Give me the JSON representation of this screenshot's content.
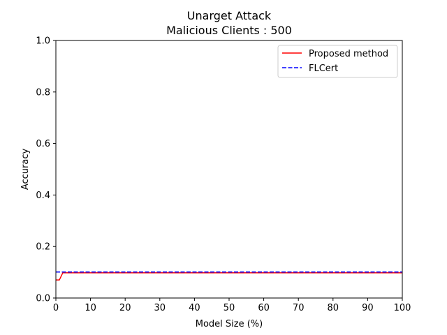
{
  "chart_data": {
    "type": "line",
    "title": "Unarget Attack",
    "subtitle": "Malicious Clients : 500",
    "xlabel": "Model Size (%)",
    "ylabel": "Accuracy",
    "xlim": [
      0,
      100
    ],
    "ylim": [
      0.0,
      1.0
    ],
    "xticks": [
      "0",
      "10",
      "20",
      "30",
      "40",
      "50",
      "60",
      "70",
      "80",
      "90",
      "100"
    ],
    "yticks": [
      "0.0",
      "0.2",
      "0.4",
      "0.6",
      "0.8",
      "1.0"
    ],
    "grid": false,
    "legend_position": "top-right",
    "series": [
      {
        "name": "Proposed method",
        "color": "#ff0000",
        "style": "solid",
        "x": [
          0,
          1,
          2,
          3,
          4,
          5,
          10,
          20,
          30,
          40,
          50,
          60,
          70,
          80,
          90,
          100
        ],
        "y": [
          0.07,
          0.07,
          0.098,
          0.098,
          0.098,
          0.098,
          0.098,
          0.098,
          0.098,
          0.098,
          0.098,
          0.098,
          0.098,
          0.098,
          0.098,
          0.098
        ]
      },
      {
        "name": "FLCert",
        "color": "#0000ff",
        "style": "dashed",
        "x": [
          0,
          100
        ],
        "y": [
          0.101,
          0.101
        ]
      }
    ]
  }
}
